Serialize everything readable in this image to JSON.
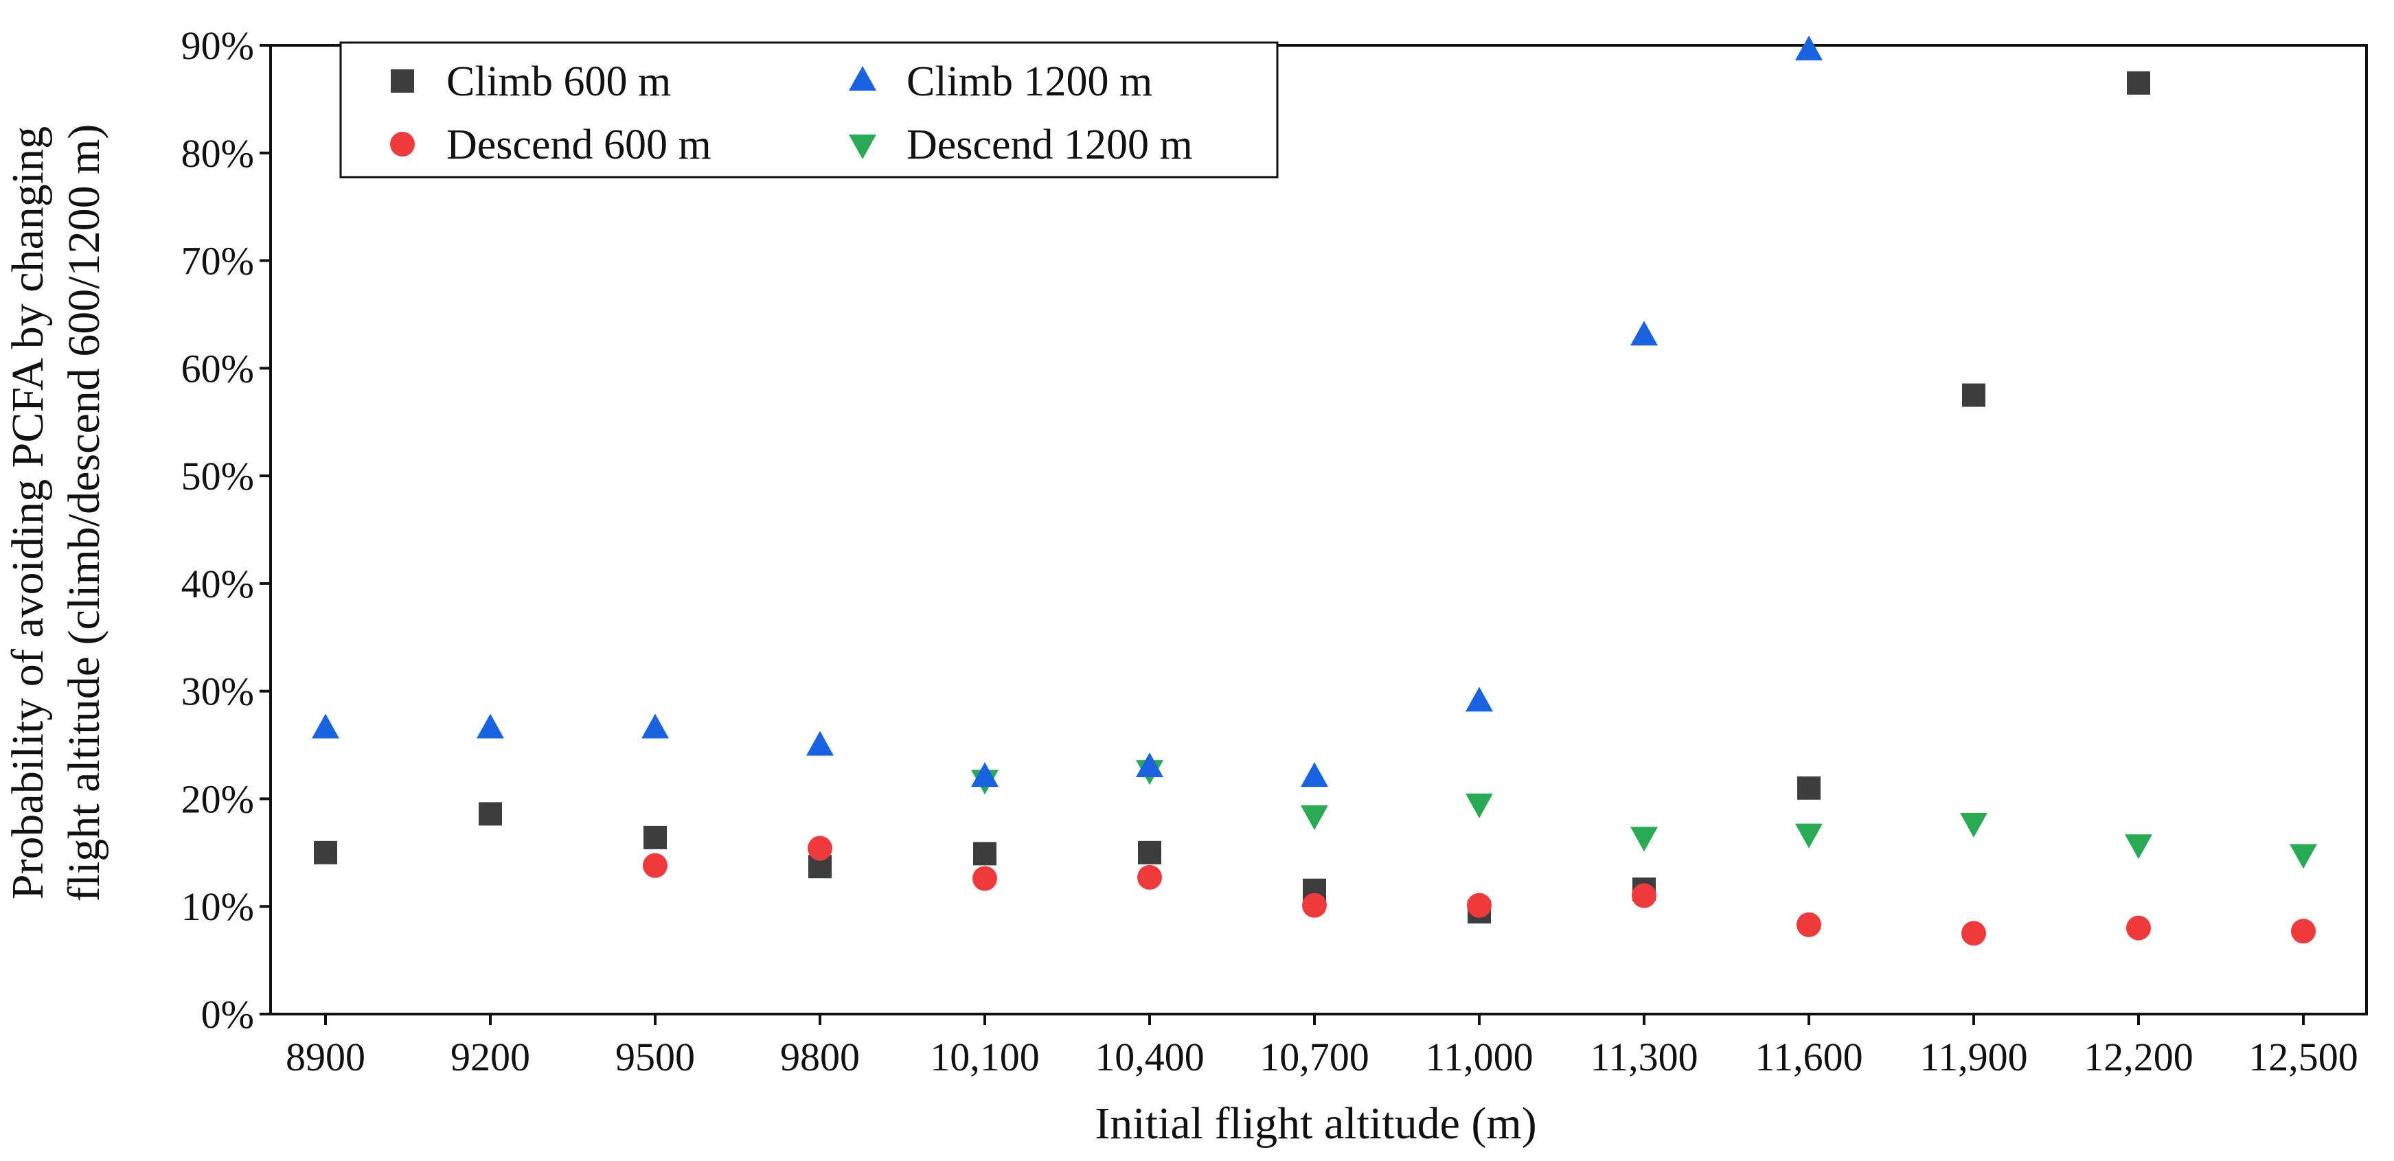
{
  "chart_data": {
    "type": "scatter",
    "title": "",
    "xlabel": "Initial flight altitude (m)",
    "ylabel_lines": [
      "Probability of avoiding PCFA by changing",
      "flight altitude (climb/descend 600/1200 m)"
    ],
    "categories": [
      "8900",
      "9200",
      "9500",
      "9800",
      "10,100",
      "10,400",
      "10,700",
      "11,000",
      "11,300",
      "11,600",
      "11,900",
      "12,200",
      "12,500"
    ],
    "y_ticks": [
      "0%",
      "10%",
      "20%",
      "30%",
      "40%",
      "50%",
      "60%",
      "70%",
      "80%",
      "90%"
    ],
    "ylim": [
      0,
      90
    ],
    "legend_position": "top-left",
    "series": [
      {
        "name": "Climb 600 m",
        "marker": "square",
        "color": "#3d3d3d",
        "values": [
          15.0,
          18.6,
          16.4,
          13.7,
          14.9,
          15.0,
          11.5,
          9.5,
          11.6,
          21.0,
          57.5,
          86.5,
          null
        ]
      },
      {
        "name": "Climb 1200 m",
        "marker": "triangle-up",
        "color": "#1a63e0",
        "values": [
          26.5,
          26.5,
          26.5,
          24.9,
          22.0,
          22.9,
          22.0,
          29.0,
          63.0,
          89.5,
          null,
          null,
          null
        ]
      },
      {
        "name": "Descend 600 m",
        "marker": "circle",
        "color": "#ee3a3a",
        "values": [
          null,
          null,
          13.8,
          15.4,
          12.6,
          12.7,
          10.1,
          10.1,
          11.0,
          8.3,
          7.5,
          8.0,
          7.7
        ]
      },
      {
        "name": "Descend 1200 m",
        "marker": "triangle-down",
        "color": "#2aaa55",
        "values": [
          null,
          null,
          null,
          null,
          21.8,
          22.7,
          18.5,
          19.6,
          16.5,
          16.8,
          17.8,
          15.8,
          14.9
        ]
      }
    ]
  }
}
